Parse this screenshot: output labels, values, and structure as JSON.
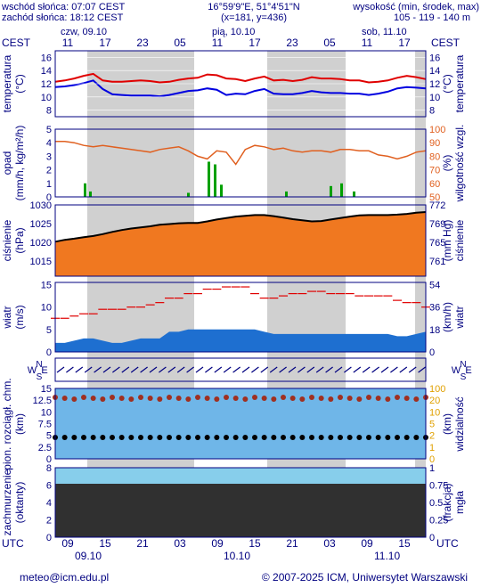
{
  "header": {
    "sunrise": "wschód słońca: 07:07 CEST",
    "sunset": "zachód słońca: 18:12 CEST",
    "coords": "16°59'9\"E, 51°4'51\"N",
    "grid": "(x=181,  y=436)",
    "alt_title": "wysokość (min, środek, max)",
    "alt_values": "105 - 119 - 140 m"
  },
  "top_axis": {
    "tz": "CEST",
    "dates": [
      "czw, 09.10",
      "pią, 10.10",
      "sob, 11.10"
    ],
    "hours": [
      "11",
      "17",
      "23",
      "05",
      "11",
      "17",
      "23",
      "05",
      "11",
      "17"
    ]
  },
  "bottom_axis": {
    "tz": "UTC",
    "hours": [
      "09",
      "15",
      "21",
      "03",
      "09",
      "15",
      "21",
      "03",
      "09",
      "15"
    ],
    "dates": [
      "09.10",
      "10.10",
      "11.10"
    ]
  },
  "footer": {
    "left": "meteo@icm.edu.pl",
    "right": "© 2007-2025 ICM, Uniwersytet Warszawski"
  },
  "colors": {
    "frame": "#000080",
    "night": "#c8c8c8",
    "temp": "#e00000",
    "dew": "#0000e0",
    "humidity": "#e06020",
    "precip": "#00a000",
    "pressure_line": "#000000",
    "wind_gust": "#e00000",
    "visibility": "#e0a000",
    "cloud_low": "#303030",
    "cloud_sky": "#87ceeb"
  },
  "chart_data": [
    {
      "type": "line",
      "panel": "temperature",
      "ylabel_left": "temperatura\n(°C)",
      "ylabel_right": "(°C)\ntemperatura",
      "yticks": [
        8,
        10,
        12,
        14,
        16
      ],
      "ylim": [
        7,
        17
      ],
      "series": [
        {
          "values": [
            12.3,
            12.5,
            12.8,
            13.2,
            13.5,
            12.5,
            12.3,
            12.3,
            12.4,
            12.5,
            12.4,
            12.2,
            12.3,
            12.6,
            12.8,
            12.9,
            13.4,
            13.3,
            12.8,
            12.7,
            12.4,
            12.8,
            13.1,
            12.5,
            12.6,
            12.4,
            12.6,
            13.0,
            12.8,
            12.8,
            12.7,
            12.5,
            12.5,
            12.2,
            12.3,
            12.5,
            12.9,
            13.2,
            13.0,
            12.7
          ]
        },
        {
          "values": [
            11.5,
            11.6,
            11.8,
            12.1,
            12.5,
            11.2,
            10.4,
            10.3,
            10.2,
            10.2,
            10.2,
            10.1,
            10.3,
            10.6,
            10.9,
            11.0,
            11.3,
            11.1,
            10.3,
            10.5,
            10.4,
            10.9,
            11.2,
            10.5,
            10.4,
            10.4,
            10.6,
            10.9,
            10.7,
            10.6,
            10.6,
            10.5,
            10.5,
            10.3,
            10.5,
            10.8,
            11.3,
            11.5,
            11.4,
            11.3
          ]
        }
      ],
      "x_hours_from_start": 0,
      "step_hours": 1.2
    },
    {
      "type": "line",
      "panel": "precip_humidity",
      "ylabel_left": "opad\n(mm/h, kg/m²/h)",
      "ylabel_right": "(%)\nwilgotność wzgl.",
      "yticks_left": [
        0,
        1,
        2,
        3,
        4,
        5
      ],
      "yticks_right": [
        50,
        60,
        70,
        80,
        90,
        100
      ],
      "series": [
        {
          "values": [
            91,
            91,
            90,
            88,
            87,
            88,
            87,
            86,
            85,
            84,
            83,
            85,
            86,
            87,
            84,
            80,
            78,
            84,
            83,
            74,
            85,
            88,
            87,
            85,
            86,
            84,
            83,
            84,
            84,
            83,
            85,
            85,
            84,
            84,
            81,
            80,
            78,
            80,
            83,
            84
          ]
        }
      ]
    },
    {
      "type": "area",
      "panel": "pressure",
      "ylabel_left": "ciśnienie\n(hPa)",
      "ylabel_right": "(mm Hg)\nciśnienie",
      "yticks_left": [
        1015,
        1020,
        1025,
        1030
      ],
      "yticks_right": [
        761,
        765,
        769,
        772
      ],
      "ylim": [
        1011,
        1030
      ],
      "series": [
        {
          "values": [
            1020.2,
            1020.7,
            1021.0,
            1021.4,
            1021.7,
            1022.2,
            1022.8,
            1023.3,
            1023.7,
            1024.0,
            1024.3,
            1024.7,
            1024.9,
            1025.1,
            1025.2,
            1025.2,
            1025.6,
            1026.1,
            1026.5,
            1026.9,
            1027.1,
            1027.3,
            1027.3,
            1027.0,
            1026.6,
            1026.2,
            1025.9,
            1025.6,
            1025.7,
            1026.1,
            1026.5,
            1026.9,
            1027.2,
            1027.3,
            1027.3,
            1027.3,
            1027.4,
            1027.6,
            1027.9,
            1028.1
          ]
        }
      ]
    },
    {
      "type": "area",
      "panel": "wind",
      "ylabel_left": "wiatr\n(m/s)",
      "ylabel_right": "(km/h)\nwiatr",
      "yticks_left": [
        0,
        5,
        10,
        15
      ],
      "yticks_right": [
        0,
        18,
        36,
        54
      ],
      "ylim": [
        0,
        15.5
      ],
      "series": [
        {
          "values": [
            7.5,
            7.5,
            8,
            8.5,
            8.5,
            9.5,
            9.5,
            9.5,
            10,
            10,
            10.5,
            11,
            12,
            12,
            13,
            13,
            14,
            14,
            14.5,
            14.5,
            14.5,
            13,
            12,
            12,
            12.5,
            13,
            13,
            13.5,
            13.5,
            13,
            13,
            13,
            12.5,
            12.5,
            12.5,
            12.5,
            11.5,
            11,
            11,
            10
          ]
        },
        {
          "values": [
            2,
            2,
            2.5,
            3,
            3,
            2.5,
            2,
            2,
            2.5,
            3,
            3,
            3,
            4.5,
            4.5,
            5,
            5,
            5,
            5,
            5,
            5,
            5,
            5,
            4.5,
            4,
            4,
            4,
            4,
            4,
            4,
            4,
            4,
            4,
            4,
            4,
            4,
            4,
            3.5,
            3.5,
            4,
            4.5
          ]
        }
      ]
    },
    {
      "type": "scatter",
      "panel": "cloud_visibility",
      "ylabel_left": "pion. rozciągł. chm.\n(km)",
      "ylabel_right": "(km)\nwidzialność",
      "yticks_left": [
        0,
        2.5,
        5,
        7.5,
        10,
        12.5,
        15
      ],
      "yticks_right": [
        0,
        1,
        2,
        5,
        10,
        20,
        100
      ]
    },
    {
      "type": "area",
      "panel": "cloudiness",
      "ylabel_left": "zachmurzenie\n(oktanty)",
      "ylabel_right": "(frakcja)\nmgła",
      "yticks_left": [
        0,
        2,
        4,
        6,
        8
      ],
      "yticks_right": [
        0,
        0.25,
        0.5,
        0.75,
        1
      ]
    }
  ],
  "wind_dir_labels": {
    "n": "N",
    "s": "S",
    "w": "W",
    "e": "E"
  }
}
